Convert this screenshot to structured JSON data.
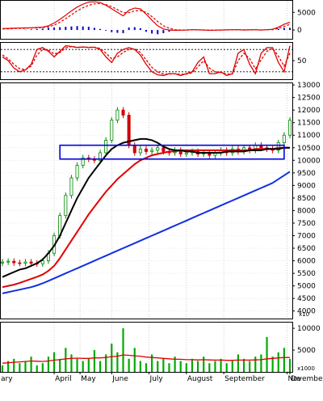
{
  "chart_data": [
    {
      "type": "line",
      "panel": "macd",
      "ylim": [
        -2500,
        8500
      ],
      "yticks": [
        "5000",
        "0"
      ],
      "series": [
        {
          "color": "#e00000",
          "style": "solid",
          "values": [
            400,
            450,
            500,
            550,
            600,
            650,
            700,
            800,
            1200,
            2000,
            3000,
            4200,
            5400,
            6500,
            7300,
            7900,
            8000,
            7800,
            7000,
            6000,
            5000,
            4000,
            5600,
            6200,
            6000,
            4500,
            2800,
            1200,
            300,
            0,
            -100,
            -50,
            0,
            100,
            50,
            0,
            -100,
            -50,
            0,
            50,
            100,
            100,
            0,
            50,
            100,
            0,
            100,
            200,
            800,
            1600,
            2200
          ]
        },
        {
          "color": "#e00000",
          "style": "dashed",
          "values": [
            300,
            350,
            400,
            450,
            500,
            560,
            620,
            700,
            900,
            1400,
            2200,
            3200,
            4300,
            5400,
            6300,
            7000,
            7400,
            7500,
            7200,
            6600,
            5800,
            4900,
            4900,
            5400,
            5500,
            5000,
            3800,
            2400,
            1200,
            500,
            100,
            0,
            0,
            50,
            50,
            20,
            -20,
            -30,
            -10,
            20,
            50,
            70,
            40,
            40,
            60,
            30,
            60,
            120,
            450,
            1000,
            1600
          ]
        },
        {
          "color": "#0000cc",
          "style": "hist",
          "values": [
            0,
            0,
            0,
            0,
            100,
            200,
            300,
            400,
            600,
            700,
            800,
            900,
            1000,
            1100,
            1000,
            900,
            600,
            300,
            -200,
            -600,
            -800,
            -900,
            700,
            800,
            500,
            -500,
            -1000,
            -1200,
            -900,
            -500,
            -200,
            -50,
            0,
            50,
            0,
            -20,
            -80,
            -20,
            10,
            30,
            50,
            30,
            -40,
            10,
            40,
            -30,
            40,
            80,
            350,
            600,
            600
          ]
        }
      ]
    },
    {
      "type": "line",
      "panel": "stochastic",
      "ylim": [
        0,
        100
      ],
      "yticks": [
        "50"
      ],
      "levels": [
        80,
        20
      ],
      "series": [
        {
          "color": "#e00000",
          "style": "solid",
          "values": [
            60,
            50,
            30,
            20,
            25,
            40,
            80,
            85,
            75,
            60,
            75,
            90,
            88,
            85,
            87,
            85,
            86,
            80,
            60,
            45,
            70,
            80,
            85,
            80,
            65,
            40,
            20,
            12,
            10,
            15,
            15,
            10,
            15,
            20,
            45,
            60,
            15,
            15,
            20,
            10,
            15,
            70,
            80,
            40,
            15,
            70,
            85,
            85,
            45,
            20,
            90
          ]
        },
        {
          "color": "#e00000",
          "style": "dashed",
          "values": [
            65,
            55,
            40,
            28,
            26,
            35,
            65,
            80,
            78,
            68,
            72,
            84,
            88,
            86,
            86,
            86,
            86,
            83,
            70,
            55,
            60,
            72,
            80,
            82,
            72,
            52,
            32,
            20,
            14,
            14,
            15,
            13,
            14,
            17,
            33,
            50,
            30,
            20,
            18,
            14,
            14,
            50,
            70,
            55,
            28,
            52,
            75,
            83,
            62,
            35,
            70
          ]
        }
      ]
    },
    {
      "type": "candlestick",
      "panel": "price",
      "ylim": [
        3700,
        13100
      ],
      "yticks": [
        "4000",
        "4500",
        "5000",
        "5500",
        "6000",
        "6500",
        "7000",
        "7500",
        "8000",
        "8500",
        "9000",
        "9500",
        "10000",
        "10500",
        "11000",
        "11500",
        "12000",
        "12500",
        "13000"
      ],
      "unit_label": "x10",
      "close": [
        5950,
        5980,
        5920,
        5900,
        5950,
        5900,
        5880,
        6000,
        6300,
        7000,
        7800,
        8600,
        9300,
        9800,
        10100,
        10050,
        10000,
        10300,
        10800,
        11600,
        12000,
        11800,
        10600,
        10300,
        10450,
        10350,
        10400,
        10500,
        10350,
        10300,
        10400,
        10250,
        10300,
        10350,
        10250,
        10300,
        10200,
        10300,
        10400,
        10300,
        10450,
        10350,
        10500,
        10400,
        10600,
        10500,
        10450,
        10400,
        10700,
        11000,
        11600
      ],
      "ma_black": [
        5350,
        5450,
        5550,
        5650,
        5700,
        5800,
        5900,
        6050,
        6300,
        6600,
        7000,
        7500,
        8000,
        8500,
        8900,
        9300,
        9600,
        9900,
        10200,
        10450,
        10600,
        10700,
        10750,
        10800,
        10850,
        10850,
        10800,
        10700,
        10550,
        10450,
        10400,
        10400,
        10350,
        10350,
        10300,
        10300,
        10300,
        10300,
        10300,
        10350,
        10350,
        10350,
        10350,
        10400,
        10400,
        10400,
        10450,
        10450,
        10450,
        10500,
        10500
      ],
      "ma_red": [
        4950,
        5000,
        5050,
        5120,
        5200,
        5280,
        5360,
        5450,
        5600,
        5800,
        6100,
        6450,
        6800,
        7150,
        7500,
        7850,
        8150,
        8450,
        8750,
        9000,
        9250,
        9450,
        9650,
        9850,
        10000,
        10100,
        10200,
        10250,
        10300,
        10350,
        10350,
        10400,
        10400,
        10400,
        10400,
        10400,
        10400,
        10400,
        10400,
        10400,
        10400,
        10400,
        10400,
        10400,
        10450,
        10450,
        10450,
        10450,
        10500,
        10500,
        10500
      ],
      "ma_blue": [
        4700,
        4750,
        4800,
        4850,
        4900,
        4950,
        5020,
        5100,
        5200,
        5300,
        5400,
        5500,
        5600,
        5700,
        5800,
        5900,
        6000,
        6100,
        6200,
        6300,
        6400,
        6500,
        6600,
        6700,
        6800,
        6900,
        7000,
        7100,
        7200,
        7300,
        7400,
        7500,
        7600,
        7700,
        7800,
        7900,
        8000,
        8100,
        8200,
        8300,
        8400,
        8500,
        8600,
        8700,
        8800,
        8900,
        9000,
        9100,
        9250,
        9400,
        9550
      ],
      "box": {
        "from": 10,
        "to": 49,
        "low": 10050,
        "high": 10600
      }
    },
    {
      "type": "bar",
      "panel": "volume",
      "ylim": [
        0,
        11500
      ],
      "yticks": [
        "10000",
        "5000"
      ],
      "unit_label": "x1000",
      "values": [
        1500,
        2500,
        3000,
        2000,
        2500,
        3500,
        1500,
        2000,
        3500,
        4500,
        3000,
        5500,
        4000,
        3000,
        2500,
        3000,
        5000,
        2500,
        4000,
        6500,
        4500,
        10000,
        3000,
        5500,
        2500,
        2000,
        4000,
        2500,
        3000,
        2000,
        3500,
        2500,
        2000,
        3000,
        2500,
        3500,
        2000,
        2500,
        3000,
        2000,
        2500,
        4000,
        3000,
        2500,
        3500,
        4000,
        8000,
        3500,
        4500,
        5500,
        3000
      ],
      "ma_red": [
        2000,
        2100,
        2200,
        2300,
        2400,
        2500,
        2450,
        2400,
        2500,
        2700,
        2800,
        3000,
        3100,
        3150,
        3100,
        3100,
        3200,
        3200,
        3300,
        3500,
        3600,
        3900,
        3800,
        3700,
        3600,
        3400,
        3300,
        3200,
        3100,
        3000,
        2900,
        2900,
        2800,
        2800,
        2750,
        2800,
        2750,
        2700,
        2700,
        2650,
        2650,
        2700,
        2700,
        2700,
        2750,
        2800,
        3000,
        3100,
        3200,
        3300,
        3300
      ]
    },
    {
      "type": "axis",
      "panel": "x-axis",
      "months": [
        {
          "label": "ary",
          "at": 0
        },
        {
          "label": "April",
          "at": 9
        },
        {
          "label": "May",
          "at": 13.5
        },
        {
          "label": "June",
          "at": 19
        },
        {
          "label": "July",
          "at": 25.5
        },
        {
          "label": "August",
          "at": 32
        },
        {
          "label": "September",
          "at": 38.5
        },
        {
          "label": "November",
          "at": 49.5
        },
        {
          "label": "De",
          "at": 55
        }
      ]
    }
  ]
}
